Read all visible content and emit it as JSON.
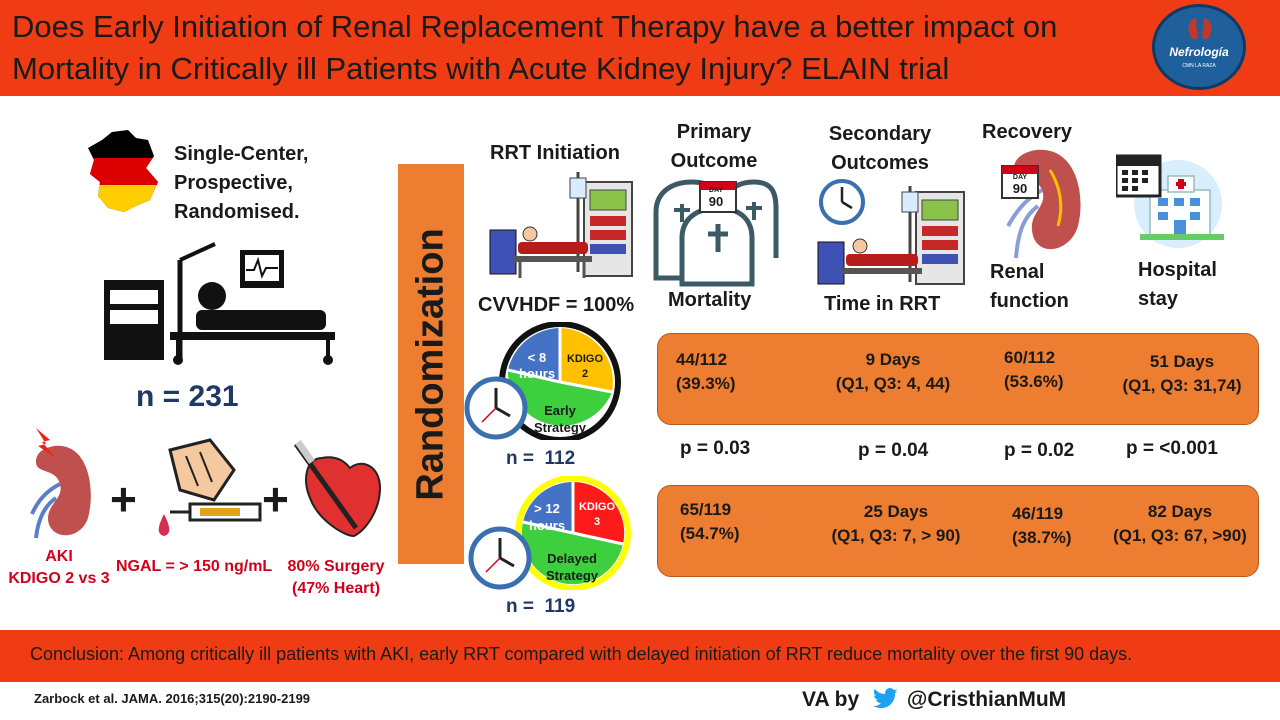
{
  "header": {
    "title_line1": "Does Early Initiation of Renal Replacement Therapy have a better impact on",
    "title_line2": "Mortality in Critically ill  Patients with Acute Kidney Injury?  ELAIN trial",
    "logo_text": "Nefrología",
    "logo_subtext": "CMN LA RAZA"
  },
  "study": {
    "design_line1": "Single-Center,",
    "design_line2": "Prospective,",
    "design_line3": "Randomised.",
    "n_total": "n = 231"
  },
  "inclusion": {
    "aki_line1": "AKI",
    "aki_line2": "KDIGO 2 vs 3",
    "ngal": "NGAL = > 150 ng/mL",
    "surgery_line1": "80% Surgery",
    "surgery_line2": "(47% Heart)",
    "plus": "+"
  },
  "randomization": "Randomization",
  "rrt": {
    "title": "RRT Initiation",
    "cvvhdf": "CVVHDF = 100%"
  },
  "early": {
    "time_line1": "< 8",
    "time_line2": "hours",
    "kdigo_line1": "KDIGO",
    "kdigo_line2": "2",
    "strategy_line1": "Early",
    "strategy_line2": "Strategy",
    "n": "n =  112"
  },
  "delayed": {
    "time_line1": "> 12",
    "time_line2": "hours",
    "kdigo_line1": "KDIGO",
    "kdigo_line2": "3",
    "strategy_line1": "Delayed",
    "strategy_line2": "Strategy",
    "n": "n =  119"
  },
  "outcomes": {
    "primary_line1": "Primary",
    "primary_line2": "Outcome",
    "mortality": "Mortality",
    "day_label": "DAY",
    "day_value": "90",
    "secondary_line1": "Secondary",
    "secondary_line2": "Outcomes",
    "time_rrt": "Time in RRT",
    "recovery": "Recovery",
    "renal_line1": "Renal",
    "renal_line2": "function",
    "hospital_line1": "Hospital",
    "hospital_line2": "stay"
  },
  "results_early": {
    "mortality_line1": "44/112",
    "mortality_line2": "(39.3%)",
    "rrt_line1": "9 Days",
    "rrt_line2": "(Q1, Q3: 4, 44)",
    "renal_line1": "60/112",
    "renal_line2": "(53.6%)",
    "hospital_line1": "51 Days",
    "hospital_line2": "(Q1, Q3: 31,74)"
  },
  "pvalues": {
    "mortality": "p = 0.03",
    "rrt": "p = 0.04",
    "renal": "p = 0.02",
    "hospital": "p = <0.001"
  },
  "results_delayed": {
    "mortality_line1": "65/119",
    "mortality_line2": "(54.7%)",
    "rrt_line1": "25 Days",
    "rrt_line2": "(Q1, Q3: 7, > 90)",
    "renal_line1": "46/119",
    "renal_line2": "(38.7%)",
    "hospital_line1": "82 Days",
    "hospital_line2": "(Q1, Q3: 67, >90)"
  },
  "footer": {
    "conclusion": "Conclusion: Among critically ill patients with AKI, early RRT compared with delayed initiation of RRT reduce mortality over the first 90 days.",
    "reference": "Zarbock et al. JAMA. 2016;315(20):2190-2199",
    "va_prefix": "VA by",
    "handle": "@CristhianMuM"
  },
  "colors": {
    "header_bg": "#f03c14",
    "orange": "#ed7d31",
    "early_blue": "#4472c4",
    "early_yellow": "#ffc000",
    "early_green": "#3ecf3e",
    "delayed_red": "#ff1a1a",
    "ring_yellow": "#ffff00",
    "twitter_blue": "#1da1f2"
  }
}
